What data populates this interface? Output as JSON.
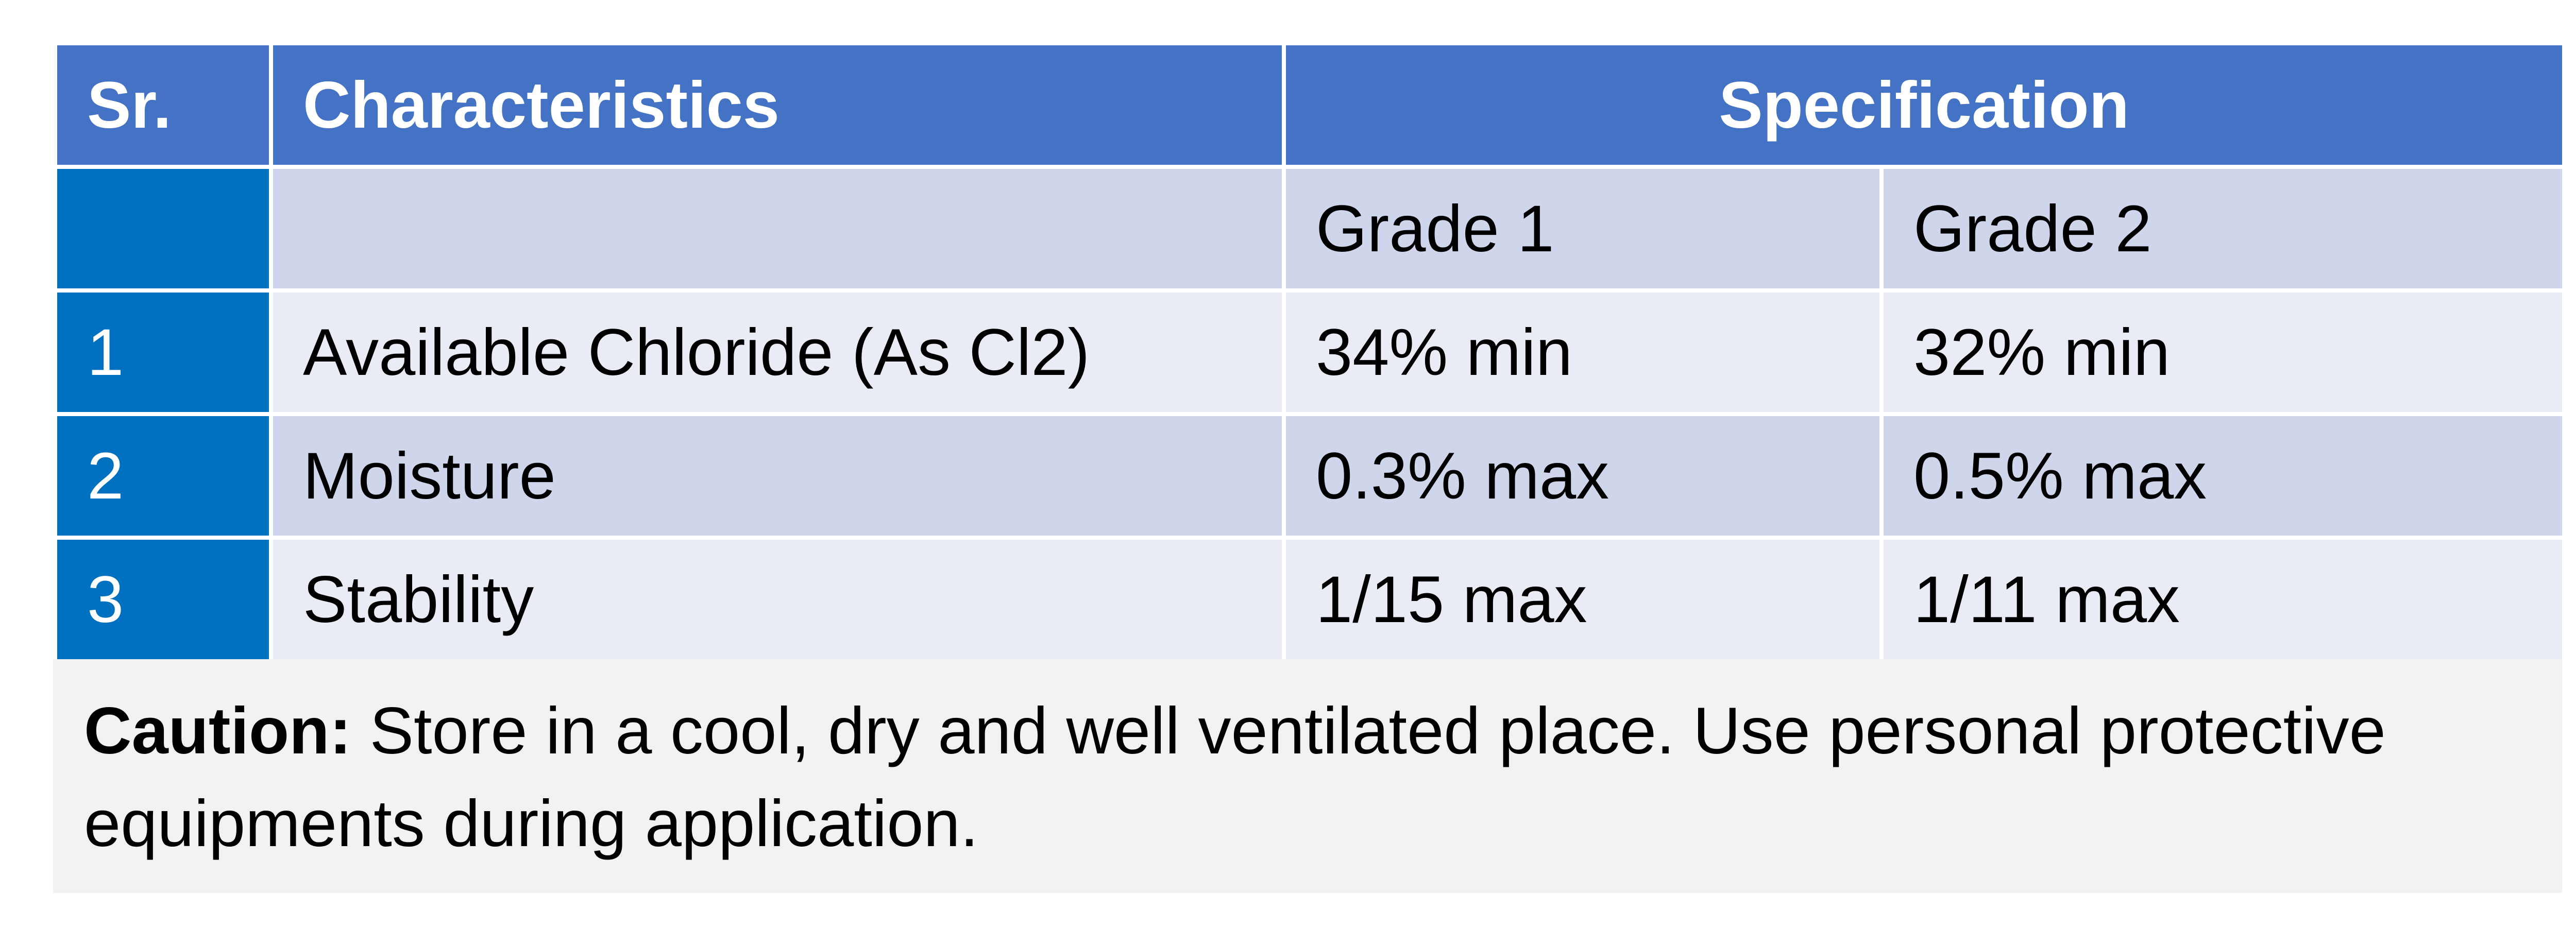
{
  "table": {
    "header": {
      "sr": "Sr.",
      "characteristics": "Characteristics",
      "specification": "Specification"
    },
    "subheader": {
      "grade1": "Grade 1",
      "grade2": "Grade 2"
    },
    "rows": [
      {
        "sr": "1",
        "characteristic": "Available Chloride (As Cl2)",
        "grade1": "34% min",
        "grade2": "32% min"
      },
      {
        "sr": "2",
        "characteristic": "Moisture",
        "grade1": "0.3% max",
        "grade2": "0.5% max"
      },
      {
        "sr": "3",
        "characteristic": "Stability",
        "grade1": "1/15 max",
        "grade2": "1/11 max"
      }
    ]
  },
  "caution": {
    "label": "Caution:",
    "text": " Store in a cool, dry and well ventilated place. Use personal protective equipments during application."
  },
  "colors": {
    "header_blue": "#4472c4",
    "sr_column_blue": "#0070c0",
    "row_shade_dark": "#cfd5ea",
    "row_shade_light": "#e9ebf5",
    "caution_background": "#f2f2f2"
  }
}
